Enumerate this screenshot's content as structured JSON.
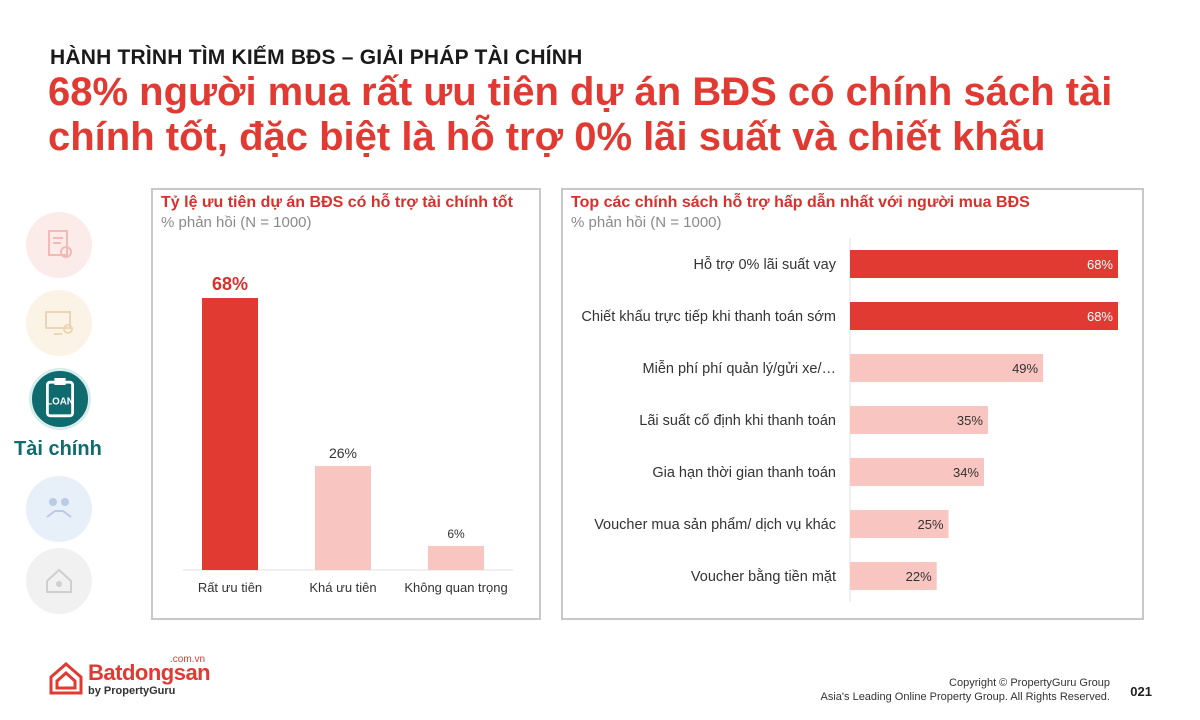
{
  "header": {
    "kicker": "HÀNH TRÌNH TÌM KIẾM BĐS – GIẢI PHÁP TÀI CHÍNH",
    "headline": "68% người mua rất ưu tiên dự án BĐS có chính sách tài chính tốt, đặc biệt là hỗ trợ 0% lãi suất và chiết khấu"
  },
  "sidebar": {
    "active_label": "Tài chính",
    "items": [
      {
        "icon": "document-search-icon"
      },
      {
        "icon": "monitor-search-icon"
      },
      {
        "icon": "loan-clipboard-icon"
      },
      {
        "icon": "handshake-icon"
      },
      {
        "icon": "house-family-icon"
      }
    ],
    "colors": {
      "active": "#0f6b6e",
      "faded1": "#f6c9c6",
      "faded2": "#f6ddb6",
      "faded3": "#bcd3ec",
      "faded4": "#d8d8d8"
    }
  },
  "colors": {
    "strong": "#e03a33",
    "light": "#f9c5c1",
    "accent_text": "#d8302c"
  },
  "chart_data": [
    {
      "type": "bar",
      "title": "Tỷ lệ ưu tiên dự án BĐS có hỗ trợ tài chính tốt",
      "subtitle": "% phản hồi (N = 1000)",
      "categories": [
        "Rất ưu tiên",
        "Khá ưu tiên",
        "Không quan trọng"
      ],
      "values": [
        68,
        26,
        6
      ],
      "value_labels": [
        "68%",
        "26%",
        "6%"
      ],
      "ylim": [
        0,
        68
      ],
      "highlight": [
        true,
        false,
        false
      ]
    },
    {
      "type": "bar",
      "orientation": "horizontal",
      "title": "Top các chính sách hỗ trợ hấp dẫn nhất với người mua BĐS",
      "subtitle": "% phản hồi (N = 1000)",
      "categories": [
        "Hỗ trợ 0% lãi suất vay",
        "Chiết khấu trực tiếp khi thanh toán sớm",
        "Miễn phí phí quản lý/gửi xe/…",
        "Lãi suất cố định khi thanh toán",
        "Gia hạn thời gian thanh toán",
        "Voucher mua sản phẩm/ dịch vụ khác",
        "Voucher bằng tiền mặt"
      ],
      "values": [
        68,
        68,
        49,
        35,
        34,
        25,
        22
      ],
      "value_labels": [
        "68%",
        "68%",
        "49%",
        "35%",
        "34%",
        "25%",
        "22%"
      ],
      "xlim": [
        0,
        68
      ],
      "highlight": [
        true,
        true,
        false,
        false,
        false,
        false,
        false
      ]
    }
  ],
  "footer": {
    "logo_name": "Batdongsan",
    "logo_domain": ".com.vn",
    "logo_by": "by PropertyGuru",
    "copyright_line1": "Copyright © PropertyGuru Group",
    "copyright_line2": "Asia's Leading Online Property Group. All Rights Reserved.",
    "page_number": "021"
  }
}
